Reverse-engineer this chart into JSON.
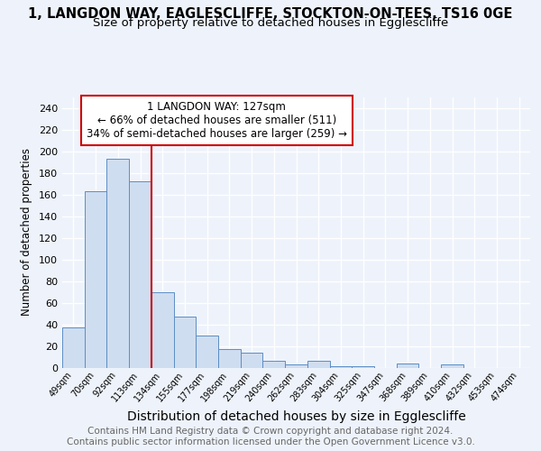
{
  "title": "1, LANGDON WAY, EAGLESCLIFFE, STOCKTON-ON-TEES, TS16 0GE",
  "subtitle": "Size of property relative to detached houses in Egglescliffe",
  "xlabel": "Distribution of detached houses by size in Egglescliffe",
  "ylabel": "Number of detached properties",
  "bar_color": "#cfddf0",
  "bar_edge_color": "#5b8ec4",
  "annotation_box_edge": "#cc0000",
  "property_line_color": "#cc0000",
  "annotation_line1": "1 LANGDON WAY: 127sqm",
  "annotation_line2": "← 66% of detached houses are smaller (511)",
  "annotation_line3": "34% of semi-detached houses are larger (259) →",
  "footer": "Contains HM Land Registry data © Crown copyright and database right 2024.\nContains public sector information licensed under the Open Government Licence v3.0.",
  "categories": [
    "49sqm",
    "70sqm",
    "92sqm",
    "113sqm",
    "134sqm",
    "155sqm",
    "177sqm",
    "198sqm",
    "219sqm",
    "240sqm",
    "262sqm",
    "283sqm",
    "304sqm",
    "325sqm",
    "347sqm",
    "368sqm",
    "389sqm",
    "410sqm",
    "432sqm",
    "453sqm",
    "474sqm"
  ],
  "values": [
    37,
    163,
    193,
    172,
    70,
    47,
    30,
    17,
    14,
    6,
    3,
    6,
    1,
    1,
    0,
    4,
    0,
    3,
    0,
    0,
    0
  ],
  "ylim": [
    0,
    250
  ],
  "yticks": [
    0,
    20,
    40,
    60,
    80,
    100,
    120,
    140,
    160,
    180,
    200,
    220,
    240
  ],
  "background_color": "#eef3fb",
  "grid_color": "#ffffff",
  "title_fontsize": 10.5,
  "subtitle_fontsize": 9.5,
  "ylabel_fontsize": 8.5,
  "xlabel_fontsize": 10,
  "annotation_fontsize": 8.5,
  "footer_fontsize": 7.5,
  "prop_bin_index": 4
}
